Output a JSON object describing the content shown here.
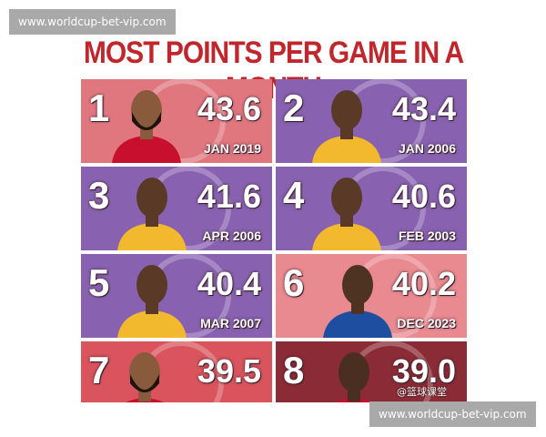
{
  "header": {
    "title": "MOST POINTS PER GAME IN A MONTH"
  },
  "cards": [
    {
      "rank": "1",
      "value": "43.6",
      "date": "JAN 2019"
    },
    {
      "rank": "2",
      "value": "43.4",
      "date": "JAN 2006"
    },
    {
      "rank": "3",
      "value": "41.6",
      "date": "APR 2006"
    },
    {
      "rank": "4",
      "value": "40.6",
      "date": "FEB 2003"
    },
    {
      "rank": "5",
      "value": "40.4",
      "date": "MAR 2007"
    },
    {
      "rank": "6",
      "value": "40.2",
      "date": "DEC 2023"
    },
    {
      "rank": "7",
      "value": "39.5"
    },
    {
      "rank": "8",
      "value": "39.0"
    }
  ],
  "watermarks": [
    "www.worldcup-bet-vip.com",
    "www.worldcup-bet-vip.com",
    "@篮球课堂"
  ]
}
